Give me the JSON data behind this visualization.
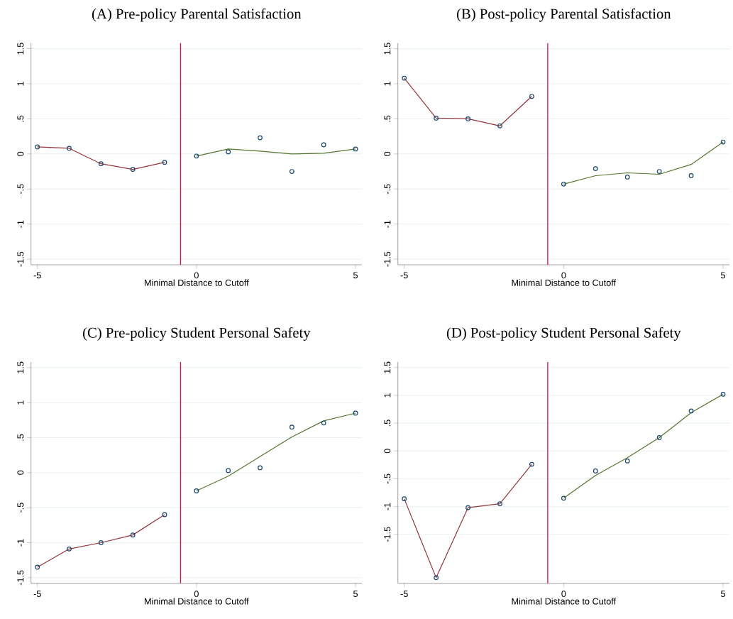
{
  "chart_data": [
    {
      "type": "scatter",
      "title": "(A) Pre-policy Parental Satisfaction",
      "xlabel": "Minimal Distance to Cutoff",
      "xlim": [
        -5.2,
        5.2
      ],
      "ylim": [
        -1.58,
        1.58
      ],
      "xticks": [
        -5,
        0,
        5
      ],
      "yticks": [
        {
          "value": -1.5,
          "label": "-1.5"
        },
        {
          "value": -1,
          "label": "-1"
        },
        {
          "value": -0.5,
          "label": "-.5"
        },
        {
          "value": 0,
          "label": "0"
        },
        {
          "value": 0.5,
          "label": ".5"
        },
        {
          "value": 1,
          "label": "1"
        },
        {
          "value": 1.5,
          "label": "1.5"
        }
      ],
      "grid": "y",
      "ref_lines": [
        {
          "axis": "x",
          "value": -0.5,
          "color": "#c8194b"
        }
      ],
      "series": [
        {
          "marker": "circle",
          "color": "#1a476f",
          "x": [
            -5,
            -4,
            -3,
            -2,
            -1,
            0,
            1,
            2,
            3,
            4,
            5
          ],
          "values": [
            0.1,
            0.08,
            -0.14,
            -0.22,
            -0.12,
            -0.03,
            0.03,
            0.23,
            -0.25,
            0.13,
            0.07
          ]
        },
        {
          "type": "line",
          "color": "#90353b",
          "x": [
            -5,
            -4,
            -3,
            -2,
            -1
          ],
          "values": [
            0.1,
            0.08,
            -0.14,
            -0.22,
            -0.12
          ]
        },
        {
          "type": "line",
          "color": "#55752f",
          "x": [
            0,
            1,
            2,
            3,
            4,
            5
          ],
          "values": [
            -0.03,
            0.07,
            0.04,
            0.0,
            0.01,
            0.07
          ]
        }
      ]
    },
    {
      "type": "scatter",
      "title": "(B) Post-policy Parental Satisfaction",
      "xlabel": "Minimal Distance to Cutoff",
      "xlim": [
        -5.2,
        5.2
      ],
      "ylim": [
        -1.58,
        1.58
      ],
      "xticks": [
        -5,
        0,
        5
      ],
      "yticks": [
        {
          "value": -1.5,
          "label": "-1.5"
        },
        {
          "value": -1,
          "label": "-1"
        },
        {
          "value": -0.5,
          "label": "-.5"
        },
        {
          "value": 0,
          "label": "0"
        },
        {
          "value": 0.5,
          "label": ".5"
        },
        {
          "value": 1,
          "label": "1"
        },
        {
          "value": 1.5,
          "label": "1.5"
        }
      ],
      "grid": "y",
      "ref_lines": [
        {
          "axis": "x",
          "value": -0.5,
          "color": "#c8194b"
        }
      ],
      "series": [
        {
          "marker": "circle",
          "color": "#1a476f",
          "x": [
            -5,
            -4,
            -3,
            -2,
            -1,
            0,
            1,
            2,
            3,
            4,
            5
          ],
          "values": [
            1.08,
            0.51,
            0.5,
            0.4,
            0.82,
            -0.43,
            -0.21,
            -0.33,
            -0.25,
            -0.31,
            0.17
          ]
        },
        {
          "type": "line",
          "color": "#90353b",
          "x": [
            -5,
            -4,
            -3,
            -2,
            -1
          ],
          "values": [
            1.08,
            0.51,
            0.5,
            0.4,
            0.82
          ]
        },
        {
          "type": "line",
          "color": "#55752f",
          "x": [
            0,
            1,
            2,
            3,
            4,
            5
          ],
          "values": [
            -0.43,
            -0.31,
            -0.27,
            -0.29,
            -0.15,
            0.17
          ]
        }
      ]
    },
    {
      "type": "scatter",
      "title": "(C) Pre-policy Student Personal Safety",
      "xlabel": "Minimal Distance to Cutoff",
      "xlim": [
        -5.2,
        5.2
      ],
      "ylim": [
        -1.58,
        1.58
      ],
      "xticks": [
        -5,
        0,
        5
      ],
      "yticks": [
        {
          "value": -1.5,
          "label": "-1.5"
        },
        {
          "value": -1,
          "label": "-1"
        },
        {
          "value": -0.5,
          "label": "-.5"
        },
        {
          "value": 0,
          "label": "0"
        },
        {
          "value": 0.5,
          "label": ".5"
        },
        {
          "value": 1,
          "label": "1"
        },
        {
          "value": 1.5,
          "label": "1.5"
        }
      ],
      "grid": "y",
      "ref_lines": [
        {
          "axis": "x",
          "value": -0.5,
          "color": "#c8194b"
        }
      ],
      "series": [
        {
          "marker": "circle",
          "color": "#1a476f",
          "x": [
            -5,
            -4,
            -3,
            -2,
            -1,
            0,
            1,
            2,
            3,
            4,
            5
          ],
          "values": [
            -1.35,
            -1.09,
            -1.0,
            -0.89,
            -0.6,
            -0.26,
            0.03,
            0.07,
            0.65,
            0.71,
            0.85
          ]
        },
        {
          "type": "line",
          "color": "#90353b",
          "x": [
            -5,
            -4,
            -3,
            -2,
            -1
          ],
          "values": [
            -1.35,
            -1.09,
            -1.0,
            -0.89,
            -0.6
          ]
        },
        {
          "type": "line",
          "color": "#55752f",
          "x": [
            0,
            1,
            2,
            3,
            4,
            5
          ],
          "values": [
            -0.26,
            -0.05,
            0.23,
            0.51,
            0.74,
            0.85
          ]
        }
      ]
    },
    {
      "type": "scatter",
      "title": "(D) Post-policy Student Personal Safety",
      "xlabel": "Minimal Distance to Cutoff",
      "xlim": [
        -5.2,
        5.2
      ],
      "ylim": [
        -2.38,
        1.6
      ],
      "xticks": [
        -5,
        0,
        5
      ],
      "yticks": [
        {
          "value": -1.5,
          "label": "-1.5"
        },
        {
          "value": -1,
          "label": "-1"
        },
        {
          "value": -0.5,
          "label": "-.5"
        },
        {
          "value": 0,
          "label": "0"
        },
        {
          "value": 0.5,
          "label": ".5"
        },
        {
          "value": 1,
          "label": "1"
        },
        {
          "value": 1.5,
          "label": "1.5"
        }
      ],
      "grid": "y",
      "ref_lines": [
        {
          "axis": "x",
          "value": -0.5,
          "color": "#c8194b"
        }
      ],
      "series": [
        {
          "marker": "circle",
          "color": "#1a476f",
          "x": [
            -5,
            -4,
            -3,
            -2,
            -1,
            0,
            1,
            2,
            3,
            4,
            5
          ],
          "values": [
            -0.86,
            -2.28,
            -1.02,
            -0.95,
            -0.24,
            -0.85,
            -0.36,
            -0.18,
            0.24,
            0.72,
            1.02
          ]
        },
        {
          "type": "line",
          "color": "#90353b",
          "x": [
            -5,
            -4,
            -3,
            -2,
            -1
          ],
          "values": [
            -0.86,
            -2.28,
            -1.02,
            -0.95,
            -0.24
          ]
        },
        {
          "type": "line",
          "color": "#55752f",
          "x": [
            0,
            1,
            2,
            3,
            4,
            5
          ],
          "values": [
            -0.85,
            -0.44,
            -0.12,
            0.24,
            0.69,
            1.02
          ]
        }
      ]
    }
  ]
}
